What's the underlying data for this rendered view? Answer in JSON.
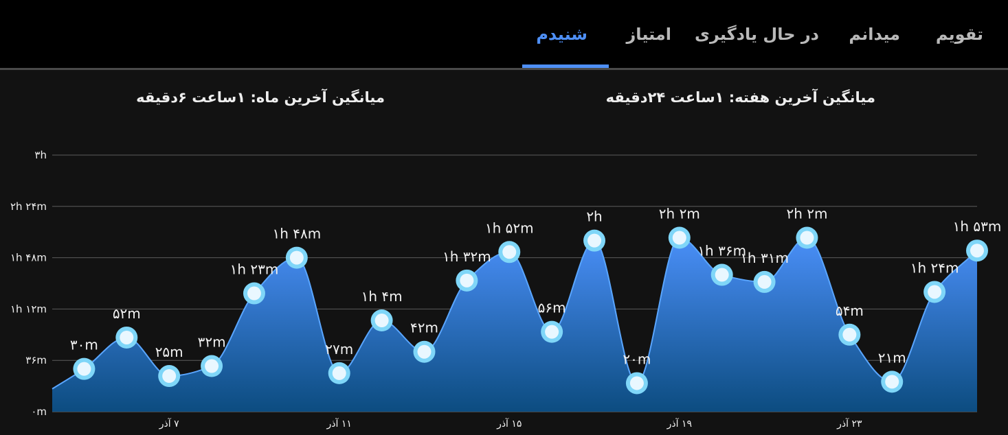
{
  "tabs": [
    {
      "label": "تقویم",
      "active": false
    },
    {
      "label": "میدانم",
      "active": false
    },
    {
      "label": "در حال یادگیری",
      "active": false
    },
    {
      "label": "امتیاز",
      "active": false
    },
    {
      "label": "شنیدم",
      "active": true
    }
  ],
  "averages": {
    "week": "میانگین آخرین هفته: ۱ساعت  ۲۴دقیقه",
    "month": "میانگین آخرین ماه: ۱ساعت  ۶دقیقه"
  },
  "colors": {
    "accent": "#4e8ff5",
    "area_top": "#4a8ff8",
    "area_bottom": "#0c4c80",
    "marker_fill": "#e9f7ff",
    "marker_ring": "#7fd6f8"
  },
  "chart_data": {
    "type": "area",
    "y_unit": "minutes",
    "ylim": [
      0,
      180
    ],
    "yticks": [
      {
        "value": 0,
        "label": "۰m"
      },
      {
        "value": 36,
        "label": "۳۶m"
      },
      {
        "value": 72,
        "label": "۱h ۱۲m"
      },
      {
        "value": 108,
        "label": "۱h ۴۸m"
      },
      {
        "value": 144,
        "label": "۲h ۲۴m"
      },
      {
        "value": 180,
        "label": "۳h"
      }
    ],
    "xticks": [
      {
        "x": 7,
        "label": "۷ آذر"
      },
      {
        "x": 11,
        "label": "۱۱ آذر"
      },
      {
        "x": 15,
        "label": "۱۵ آذر"
      },
      {
        "x": 19,
        "label": "۱۹ آذر"
      },
      {
        "x": 23,
        "label": "۲۳ آذر"
      }
    ],
    "x_start_value": 16,
    "points": [
      {
        "x": 5,
        "y": 30,
        "label": "۳۰m"
      },
      {
        "x": 6,
        "y": 52,
        "label": "۵۲m"
      },
      {
        "x": 7,
        "y": 25,
        "label": "۲۵m"
      },
      {
        "x": 8,
        "y": 32,
        "label": "۳۲m"
      },
      {
        "x": 9,
        "y": 83,
        "label": "۱h ۲۳m"
      },
      {
        "x": 10,
        "y": 108,
        "label": "۱h ۴۸m"
      },
      {
        "x": 11,
        "y": 27,
        "label": "۲۷m"
      },
      {
        "x": 12,
        "y": 64,
        "label": "۱h ۴m"
      },
      {
        "x": 13,
        "y": 42,
        "label": "۴۲m"
      },
      {
        "x": 14,
        "y": 92,
        "label": "۱h ۳۲m"
      },
      {
        "x": 15,
        "y": 112,
        "label": "۱h ۵۲m"
      },
      {
        "x": 16,
        "y": 56,
        "label": "۵۶m"
      },
      {
        "x": 17,
        "y": 120,
        "label": "۲h"
      },
      {
        "x": 18,
        "y": 20,
        "label": "۲۰m"
      },
      {
        "x": 19,
        "y": 122,
        "label": "۲h ۲m"
      },
      {
        "x": 20,
        "y": 96,
        "label": "۱h ۳۶m"
      },
      {
        "x": 21,
        "y": 91,
        "label": "۱h ۳۱m"
      },
      {
        "x": 22,
        "y": 122,
        "label": "۲h ۲m"
      },
      {
        "x": 23,
        "y": 54,
        "label": "۵۴m"
      },
      {
        "x": 24,
        "y": 21,
        "label": "۲۱m"
      },
      {
        "x": 25,
        "y": 84,
        "label": "۱h ۲۴m"
      },
      {
        "x": 26,
        "y": 113,
        "label": "۱h ۵۳m"
      }
    ]
  }
}
